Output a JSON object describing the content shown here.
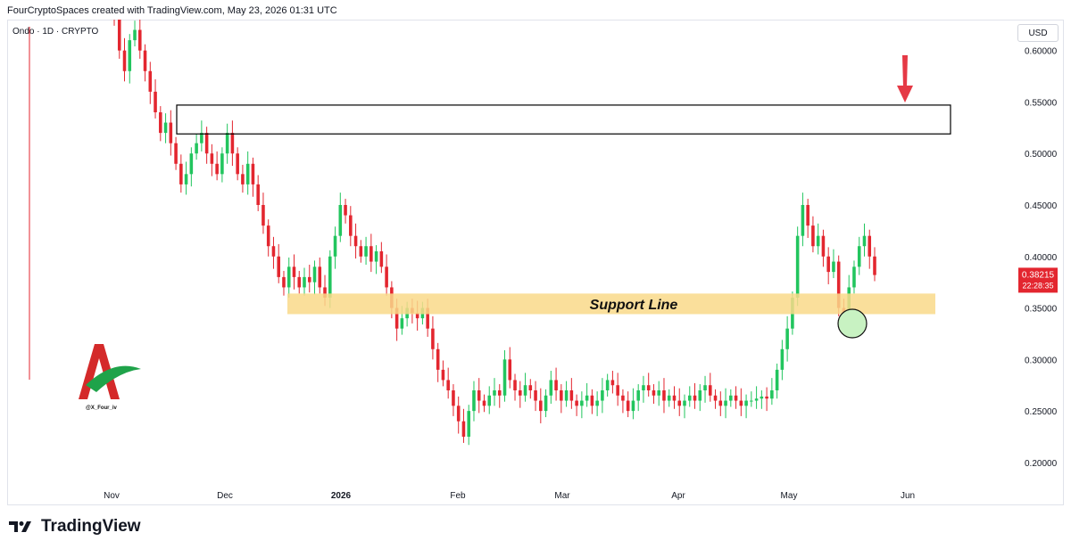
{
  "header": {
    "caption": "FourCryptoSpaces created with TradingView.com, May 23, 2026 01:31 UTC"
  },
  "symbol_label": "Ondo · 1D · CRYPTO",
  "currency": "USD",
  "footer": {
    "brand": "TradingView"
  },
  "watermark": {
    "handle": "@X_Four_iv"
  },
  "colors": {
    "up": "#22c55e",
    "down": "#e3262f",
    "support_fill": "#f9d98a",
    "price_label_bg": "#e3262f",
    "arrow": "#e53945",
    "circle_fill": "#c8f2c2",
    "circle_stroke": "#111111"
  },
  "chart_data": {
    "type": "candlestick",
    "title": "Ondo · 1D · CRYPTO",
    "ylabel": "USD",
    "ylim": [
      0.18,
      0.63
    ],
    "x_ticks": [
      "Nov",
      "Dec",
      "2026",
      "Feb",
      "Mar",
      "Apr",
      "May",
      "Jun"
    ],
    "y_ticks": [
      "0.60000",
      "0.55000",
      "0.50000",
      "0.45000",
      "0.40000",
      "0.35000",
      "0.30000",
      "0.25000",
      "0.20000"
    ],
    "current_price": "0.38215",
    "countdown": "22:28:35",
    "annotations": {
      "support_line": {
        "label": "Support Line",
        "low": 0.344,
        "high": 0.364
      },
      "resistance_box": {
        "low": 0.519,
        "high": 0.547
      }
    },
    "close": [
      0.63,
      0.6,
      0.58,
      0.61,
      0.62,
      0.6,
      0.58,
      0.56,
      0.54,
      0.52,
      0.53,
      0.51,
      0.49,
      0.47,
      0.48,
      0.5,
      0.51,
      0.52,
      0.5,
      0.49,
      0.48,
      0.5,
      0.52,
      0.5,
      0.48,
      0.47,
      0.49,
      0.47,
      0.45,
      0.43,
      0.41,
      0.4,
      0.38,
      0.37,
      0.39,
      0.38,
      0.37,
      0.38,
      0.375,
      0.39,
      0.37,
      0.36,
      0.4,
      0.42,
      0.45,
      0.44,
      0.42,
      0.41,
      0.4,
      0.41,
      0.395,
      0.405,
      0.39,
      0.37,
      0.35,
      0.33,
      0.34,
      0.35,
      0.345,
      0.34,
      0.35,
      0.33,
      0.31,
      0.29,
      0.28,
      0.27,
      0.255,
      0.24,
      0.225,
      0.25,
      0.27,
      0.26,
      0.255,
      0.265,
      0.27,
      0.265,
      0.3,
      0.28,
      0.27,
      0.265,
      0.275,
      0.27,
      0.26,
      0.25,
      0.265,
      0.28,
      0.27,
      0.26,
      0.27,
      0.26,
      0.255,
      0.26,
      0.265,
      0.255,
      0.26,
      0.27,
      0.28,
      0.275,
      0.265,
      0.26,
      0.25,
      0.26,
      0.27,
      0.275,
      0.27,
      0.265,
      0.27,
      0.26,
      0.265,
      0.26,
      0.255,
      0.26,
      0.265,
      0.26,
      0.27,
      0.275,
      0.265,
      0.26,
      0.255,
      0.26,
      0.265,
      0.26,
      0.255,
      0.26,
      0.26,
      0.262,
      0.264,
      0.262,
      0.27,
      0.29,
      0.31,
      0.33,
      0.36,
      0.42,
      0.45,
      0.43,
      0.41,
      0.42,
      0.4,
      0.385,
      0.395,
      0.35,
      0.345,
      0.37,
      0.39,
      0.41,
      0.42,
      0.4,
      0.382
    ]
  }
}
